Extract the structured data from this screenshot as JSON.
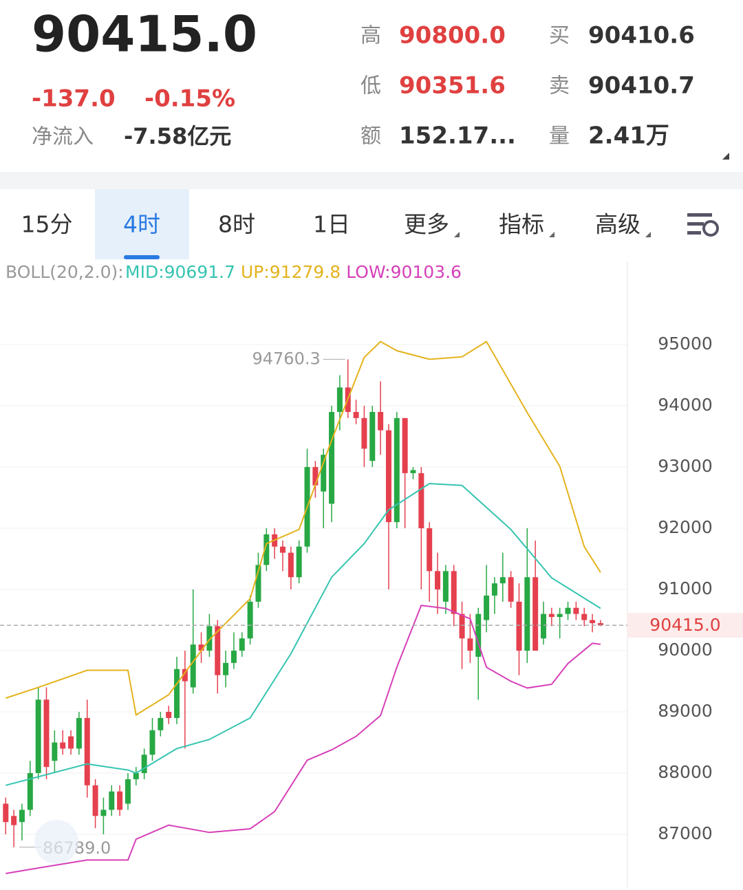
{
  "header": {
    "price": "90415.0",
    "change": "-137.0",
    "change_pct": "-0.15%",
    "inflow_label": "净流入",
    "inflow": "-7.58亿元",
    "stats": [
      {
        "label": "高",
        "value": "90800.0"
      },
      {
        "label": "低",
        "value": "90351.6"
      },
      {
        "label": "额",
        "value": "152.17..."
      },
      {
        "label": "买",
        "value": "90410.6"
      },
      {
        "label": "卖",
        "value": "90410.7"
      },
      {
        "label": "量",
        "value": "2.41万"
      }
    ]
  },
  "tabs": [
    "15分",
    "4时",
    "8时",
    "1日",
    "更多",
    "指标",
    "高级"
  ],
  "active_tab": 1,
  "chart_data": {
    "type": "candlestick",
    "indicator_label": "BOLL(20,2.0):",
    "up_color": "#27a844",
    "down_color": "#e5404e",
    "open": [
      87500,
      87300,
      87200,
      87400,
      88000,
      89200,
      88200,
      88500,
      88600,
      88400,
      88900,
      87800,
      87300,
      87400,
      87700,
      87500,
      87900,
      88000,
      88300,
      88700,
      89000,
      88900,
      89700,
      89400,
      90100,
      90000,
      90400,
      89600,
      89800,
      90000,
      90200,
      90800,
      91400,
      91900,
      91700,
      91600,
      91200,
      91700,
      93000,
      92600,
      92400,
      93900,
      94300,
      93900,
      93800,
      93100,
      93900,
      93600,
      92100,
      93800,
      92900,
      92900,
      92000,
      91300,
      90800,
      91300,
      90600,
      90200,
      89900,
      90500,
      90900,
      91100,
      91200,
      90800,
      90000,
      91200,
      90200,
      90600,
      90550,
      90600,
      90700,
      90600,
      90500,
      90450
    ],
    "high": [
      87600,
      87400,
      87500,
      88200,
      89400,
      89400,
      88700,
      88700,
      88700,
      89000,
      89200,
      87900,
      87600,
      87800,
      87800,
      88000,
      88100,
      88400,
      88900,
      89000,
      89100,
      89900,
      90000,
      91000,
      90300,
      90600,
      90500,
      90000,
      90300,
      90300,
      90900,
      91600,
      92000,
      92000,
      91800,
      91700,
      91800,
      93300,
      93100,
      93300,
      94000,
      94500,
      94760.3,
      94100,
      94000,
      94000,
      94400,
      93700,
      93900,
      93800,
      93000,
      93000,
      92100,
      91600,
      91400,
      91400,
      90800,
      90600,
      90700,
      91400,
      91200,
      91600,
      91300,
      91100,
      92000,
      91800,
      90800,
      90700,
      90700,
      90800,
      90800,
      90700,
      90600,
      90500
    ],
    "low": [
      87000,
      86789,
      86900,
      87300,
      87900,
      87900,
      88000,
      88300,
      88300,
      88300,
      87600,
      87100,
      87000,
      87300,
      87300,
      87400,
      87800,
      87900,
      88200,
      88600,
      88800,
      88800,
      88400,
      89300,
      89800,
      89900,
      89300,
      89400,
      89700,
      89900,
      90100,
      90700,
      91300,
      91500,
      91300,
      91000,
      91100,
      91600,
      92500,
      92000,
      92100,
      93600,
      93800,
      93700,
      93000,
      93000,
      93200,
      91000,
      92000,
      92000,
      92800,
      91000,
      90800,
      90600,
      90600,
      90400,
      89700,
      89800,
      89200,
      90300,
      90600,
      90800,
      90700,
      89600,
      89800,
      90000,
      90100,
      90400,
      90200,
      90500,
      90500,
      90400,
      90300,
      90400
    ],
    "close": [
      87200,
      87150,
      87400,
      88000,
      89200,
      88100,
      88500,
      88400,
      88400,
      88900,
      87800,
      87300,
      87400,
      87700,
      87400,
      87900,
      88000,
      88300,
      88700,
      88900,
      88900,
      89700,
      89500,
      90100,
      90000,
      90400,
      89600,
      89800,
      90000,
      90200,
      90800,
      91400,
      91900,
      91700,
      91600,
      91200,
      91700,
      93000,
      92700,
      93200,
      93900,
      94300,
      93900,
      93800,
      93300,
      93900,
      93600,
      92100,
      93800,
      92900,
      92950,
      92000,
      91300,
      91000,
      91300,
      90600,
      90200,
      90000,
      90600,
      90900,
      91100,
      91200,
      90800,
      90000,
      91200,
      90000,
      90600,
      90550,
      90600,
      90700,
      90600,
      90500,
      90450,
      90415
    ],
    "series": [
      {
        "name": "MID:90691.7",
        "color": "#35c4b0",
        "x": [
          0,
          10,
          15,
          16,
          21,
          25,
          30,
          35,
          40,
          44,
          47,
          52,
          56,
          62,
          67,
          73
        ],
        "values": [
          87800,
          88150,
          88050,
          88000,
          88400,
          88550,
          88900,
          89950,
          91200,
          91750,
          92300,
          92730,
          92700,
          91980,
          91190,
          90691.7
        ]
      },
      {
        "name": "UP:91279.8",
        "color": "#e4b21c",
        "x": [
          0,
          4,
          10,
          15,
          16,
          20,
          25,
          30,
          32,
          36,
          40,
          44,
          46,
          48,
          52,
          56,
          59,
          64,
          68,
          71,
          73
        ],
        "values": [
          89225,
          89400,
          89680,
          89680,
          88950,
          89280,
          90180,
          90850,
          91750,
          91980,
          93440,
          94790,
          95050,
          94900,
          94760,
          94800,
          95050,
          93890,
          93010,
          91700,
          91279.8
        ]
      },
      {
        "name": "LOW:90103.6",
        "color": "#d63fb8",
        "x": [
          0,
          4,
          10,
          15,
          16,
          20,
          25,
          30,
          33,
          37,
          40,
          43,
          46,
          48,
          51,
          54,
          57,
          59,
          62,
          64,
          67,
          69,
          72,
          73
        ],
        "values": [
          86360,
          86450,
          86580,
          86580,
          86920,
          87150,
          87030,
          87090,
          87370,
          88210,
          88380,
          88600,
          88940,
          89730,
          90740,
          90690,
          90520,
          89730,
          89500,
          89390,
          89450,
          89790,
          90120,
          90103.6
        ]
      }
    ],
    "xlim": [
      -0.7,
      76.3
    ],
    "ylim": [
      86135,
      96360
    ],
    "yticks": [
      87000,
      88000,
      89000,
      90000,
      91000,
      92000,
      93000,
      94000,
      95000
    ],
    "grid": true,
    "high_annotation": 94760.3,
    "low_annotation": {
      "value": 86789,
      "label": "86789.0"
    },
    "last_price": {
      "value": 90415,
      "label": "90415.0"
    }
  }
}
